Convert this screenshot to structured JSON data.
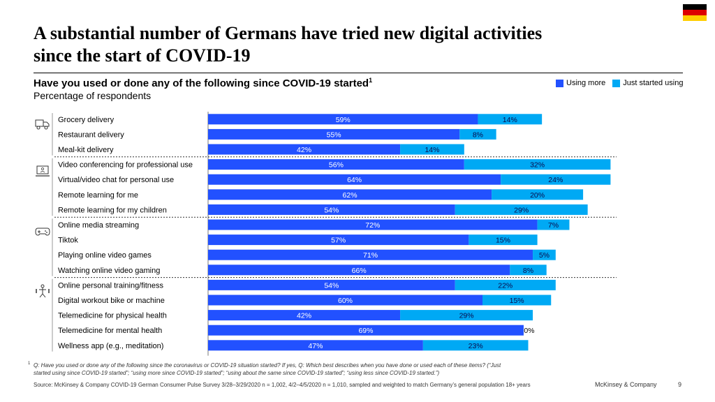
{
  "title": {
    "line1": "A substantial number of Germans have tried new digital activities",
    "line2": "since the start of COVID-19"
  },
  "subtitle": "Have you used or done any of the following since COVID-19 started",
  "subtitle_sup": "1",
  "subtitle2": "Percentage of respondents",
  "legend": [
    {
      "label": "Using more",
      "color": "#2251ff"
    },
    {
      "label": "Just started using",
      "color": "#00a9f4"
    }
  ],
  "colors": {
    "flag_black": "#000000",
    "flag_red": "#dd0000",
    "flag_gold": "#ffce00"
  },
  "chart_data": {
    "type": "bar",
    "orientation": "horizontal",
    "stacked": true,
    "unit": "%",
    "categories": [
      "Grocery delivery",
      "Restaurant delivery",
      "Meal-kit delivery",
      "Video conferencing for professional use",
      "Virtual/video chat for personal use",
      "Remote learning for me",
      "Remote learning for my children",
      "Online media streaming",
      "Tiktok",
      "Playing online video games",
      "Watching online video gaming",
      "Online personal training/fitness",
      "Digital workout bike or machine",
      "Telemedicine for physical health",
      "Telemedicine for mental health",
      "Wellness app (e.g., meditation)"
    ],
    "series": [
      {
        "name": "Using more",
        "color": "#2251ff",
        "values": [
          59,
          55,
          42,
          56,
          64,
          62,
          54,
          72,
          57,
          71,
          66,
          54,
          60,
          42,
          69,
          47
        ]
      },
      {
        "name": "Just started using",
        "color": "#00a9f4",
        "values": [
          14,
          8,
          14,
          32,
          24,
          20,
          29,
          7,
          15,
          5,
          8,
          22,
          15,
          29,
          0,
          23
        ]
      }
    ],
    "groups": [
      {
        "name": "delivery",
        "icon": "delivery-icon",
        "start": 0,
        "count": 3
      },
      {
        "name": "work-communication",
        "icon": "laptop-icon",
        "start": 3,
        "count": 4
      },
      {
        "name": "entertainment",
        "icon": "gamepad-icon",
        "start": 7,
        "count": 4
      },
      {
        "name": "health-fitness",
        "icon": "health-icon",
        "start": 11,
        "count": 5
      }
    ],
    "xlim": [
      0,
      100
    ]
  },
  "footnote": {
    "sup": "1",
    "line1": "Q: Have you used or done any of the following since the coronavirus or COVID-19 situation started? If yes, Q: Which best describes when you have done or used each of these items? (“Just",
    "line2": "started using since COVID-19 started”; “using more since COVID-19 started”; “using about the same since COVID-19 started”; “using less since COVID-19 started.”)"
  },
  "source": "Source: McKinsey & Company COVID-19 German Consumer Pulse Survey 3/28–3/29/2020 n = 1,002, 4/2–4/5/2020 n = 1,010, sampled and weighted to match Germany’s general population 18+ years",
  "brand": "McKinsey & Company",
  "page_number": "9"
}
